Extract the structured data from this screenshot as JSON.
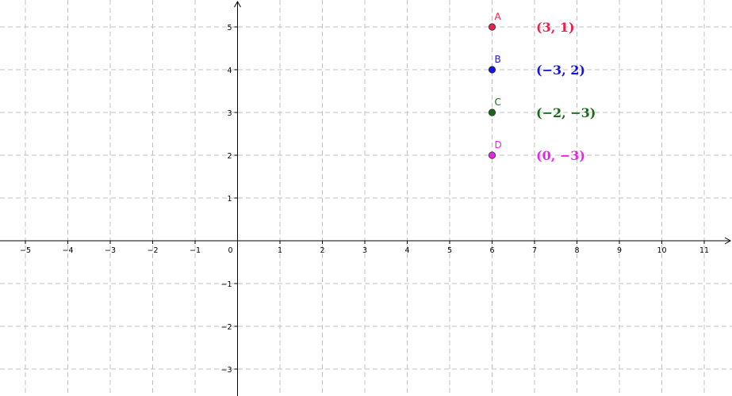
{
  "chart_data": {
    "type": "scatter",
    "title": "",
    "xlabel": "",
    "ylabel": "",
    "xlim": [
      -5.5,
      11.6
    ],
    "ylim": [
      -3.6,
      5.6
    ],
    "grid": true,
    "x_ticks": [
      "−5",
      "−4",
      "−3",
      "−2",
      "−1",
      "0",
      "1",
      "2",
      "3",
      "4",
      "5",
      "6",
      "7",
      "8",
      "9",
      "10",
      "11"
    ],
    "y_ticks": [
      "−3",
      "−2",
      "−1",
      "1",
      "2",
      "3",
      "4",
      "5"
    ],
    "points": [
      {
        "label": "A",
        "x": 6,
        "y": 5,
        "color": "#e8204e",
        "coord_text": "(3, 1)"
      },
      {
        "label": "B",
        "x": 6,
        "y": 4,
        "color": "#1414e6",
        "coord_text": "(−3, 2)"
      },
      {
        "label": "C",
        "x": 6,
        "y": 3,
        "color": "#156b15",
        "coord_text": "(−2, −3)"
      },
      {
        "label": "D",
        "x": 6,
        "y": 2,
        "color": "#e626e6",
        "coord_text": "(0, −3)"
      }
    ],
    "grid_color": "#c0c0c0",
    "axis_color": "#000000"
  }
}
